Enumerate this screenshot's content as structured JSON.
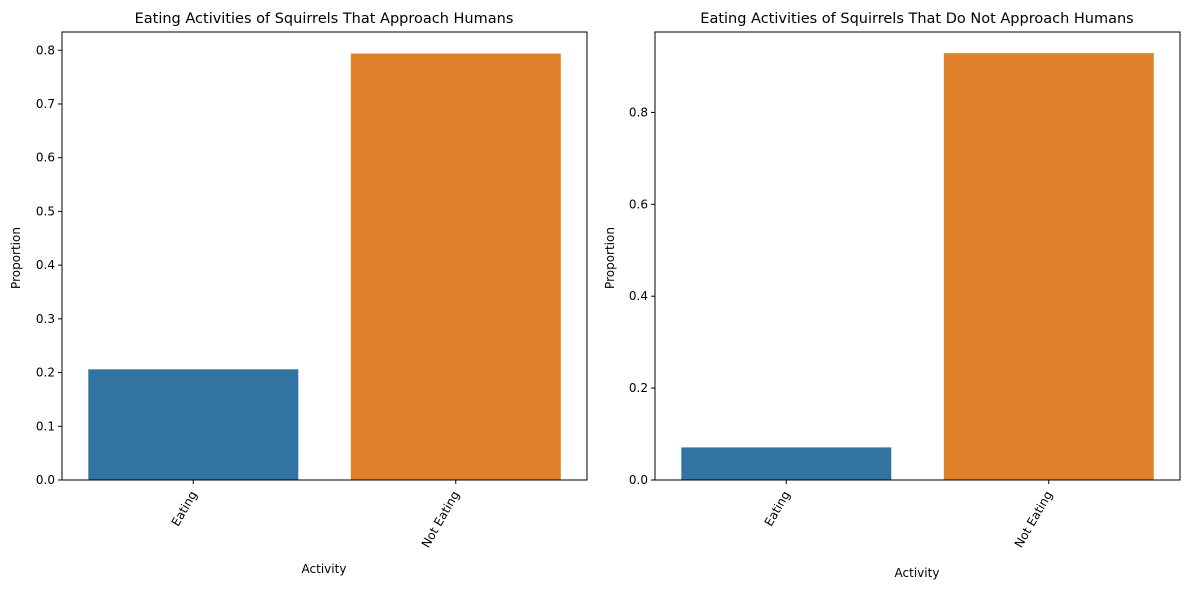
{
  "chart_data": [
    {
      "type": "bar",
      "title": "Eating Activities of Squirrels That Approach Humans",
      "xlabel": "Activity",
      "ylabel": "Proportion",
      "categories": [
        "Eating",
        "Not Eating"
      ],
      "values": [
        0.206,
        0.794
      ],
      "colors": [
        "#3274a1",
        "#e1812c"
      ],
      "ylim": [
        0,
        0.834
      ],
      "yticks": [
        0.0,
        0.1,
        0.2,
        0.3,
        0.4,
        0.5,
        0.6,
        0.7,
        0.8
      ],
      "ytick_labels": [
        "0.0",
        "0.1",
        "0.2",
        "0.3",
        "0.4",
        "0.5",
        "0.6",
        "0.7",
        "0.8"
      ],
      "grid": false,
      "xtick_rotation": 60
    },
    {
      "type": "bar",
      "title": "Eating Activities of Squirrels That Do Not Approach Humans",
      "xlabel": "Activity",
      "ylabel": "Proportion",
      "categories": [
        "Eating",
        "Not Eating"
      ],
      "values": [
        0.071,
        0.929
      ],
      "colors": [
        "#3274a1",
        "#e1812c"
      ],
      "ylim": [
        0,
        0.975
      ],
      "yticks": [
        0.0,
        0.2,
        0.4,
        0.6,
        0.8
      ],
      "ytick_labels": [
        "0.0",
        "0.2",
        "0.4",
        "0.6",
        "0.8"
      ],
      "grid": false,
      "xtick_rotation": 60
    }
  ]
}
